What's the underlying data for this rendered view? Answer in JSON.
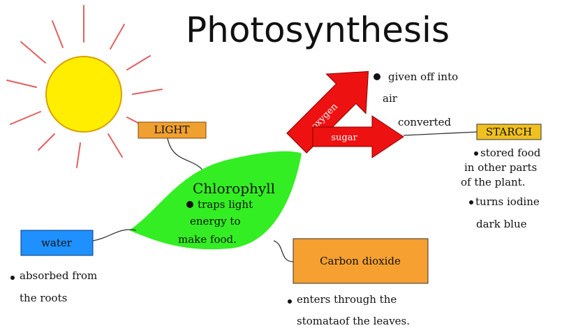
{
  "title": "Photosynthesis",
  "light": "LIGHT",
  "chlorophyll": {
    "label": "Chlorophyll",
    "note": [
      "traps light",
      "energy to",
      "make food."
    ]
  },
  "water": {
    "label": "water",
    "note": [
      "absorbed from",
      "the roots"
    ]
  },
  "carbon_dioxide": {
    "label": "Carbon dioxide",
    "note": [
      "enters through the",
      "stomataof the leaves."
    ]
  },
  "oxygen": {
    "label": "oxygen",
    "note": [
      "given off into",
      "air"
    ]
  },
  "sugar": {
    "label": "sugar",
    "converted": "converted"
  },
  "starch": {
    "label": "STARCH",
    "note": [
      "stored food",
      "in other parts",
      "of the plant."
    ],
    "note2": [
      "turns iodine",
      "dark blue"
    ]
  }
}
